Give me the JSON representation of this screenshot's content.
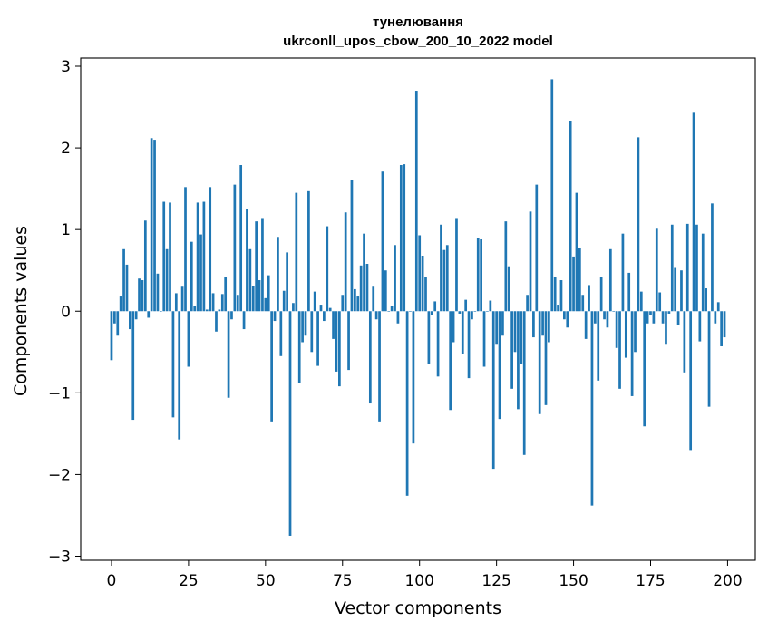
{
  "chart_data": {
    "type": "bar",
    "title_line1": "тунелювання",
    "title_line2": "ukrconll_upos_cbow_200_10_2022 model",
    "xlabel": "Vector components",
    "ylabel": "Components values",
    "xlim": [
      -10,
      209
    ],
    "ylim": [
      -3.05,
      3.1
    ],
    "xticks": [
      0,
      25,
      50,
      75,
      100,
      125,
      150,
      175,
      200
    ],
    "yticks": [
      3,
      2,
      1,
      0,
      -1,
      -2,
      -3
    ],
    "ytick_labels": [
      "3",
      "2",
      "1",
      "0",
      "−1",
      "−2",
      "−3"
    ],
    "bar_color": "#1f77b4",
    "values": [
      -0.6,
      -0.15,
      -0.3,
      0.18,
      0.76,
      0.57,
      -0.22,
      -1.33,
      -0.1,
      0.4,
      0.38,
      1.11,
      -0.08,
      2.12,
      2.1,
      0.46,
      0.0,
      1.34,
      0.76,
      1.33,
      -1.3,
      0.22,
      -1.57,
      0.3,
      1.52,
      -0.68,
      0.85,
      0.06,
      1.33,
      0.94,
      1.34,
      0.02,
      1.52,
      0.22,
      -0.25,
      0.02,
      0.21,
      0.42,
      -1.06,
      -0.1,
      1.55,
      0.2,
      1.79,
      -0.22,
      1.25,
      0.76,
      0.31,
      1.1,
      0.38,
      1.13,
      0.16,
      0.44,
      -1.35,
      -0.12,
      0.91,
      -0.55,
      0.25,
      0.72,
      -2.75,
      0.1,
      1.45,
      -0.88,
      -0.38,
      -0.3,
      1.47,
      -0.5,
      0.24,
      -0.67,
      0.08,
      -0.12,
      1.04,
      0.04,
      -0.34,
      -0.74,
      -0.92,
      0.2,
      1.21,
      -0.72,
      1.61,
      0.27,
      0.18,
      0.56,
      0.95,
      0.58,
      -1.13,
      0.3,
      -0.1,
      -1.35,
      1.71,
      0.5,
      0.0,
      0.06,
      0.81,
      -0.15,
      1.79,
      1.8,
      -2.26,
      0.0,
      -1.62,
      2.7,
      0.93,
      0.68,
      0.42,
      -0.65,
      -0.05,
      0.12,
      -0.8,
      1.06,
      0.75,
      0.81,
      -1.21,
      -0.38,
      1.13,
      -0.03,
      -0.53,
      0.14,
      -0.82,
      -0.1,
      0.0,
      0.9,
      0.88,
      -0.68,
      0.0,
      0.13,
      -1.93,
      -0.4,
      -1.32,
      -0.3,
      1.1,
      0.55,
      -0.95,
      -0.5,
      -1.2,
      -0.65,
      -1.76,
      0.2,
      1.22,
      -0.32,
      1.55,
      -1.26,
      -0.3,
      -1.15,
      -0.38,
      2.84,
      0.42,
      0.08,
      0.38,
      -0.1,
      -0.2,
      2.33,
      0.67,
      1.45,
      0.78,
      0.2,
      -0.34,
      0.32,
      -2.38,
      -0.15,
      -0.85,
      0.42,
      -0.1,
      -0.2,
      0.76,
      0.0,
      -0.45,
      -0.95,
      0.95,
      -0.57,
      0.47,
      -1.04,
      -0.5,
      2.13,
      0.24,
      -1.41,
      -0.15,
      -0.05,
      -0.15,
      1.01,
      0.23,
      -0.15,
      -0.4,
      -0.03,
      1.06,
      0.53,
      -0.17,
      0.5,
      -0.75,
      1.07,
      -1.7,
      2.43,
      1.06,
      -0.37,
      0.95,
      0.28,
      -1.17,
      1.32,
      -0.15,
      0.11,
      -0.43,
      -0.32
    ]
  }
}
